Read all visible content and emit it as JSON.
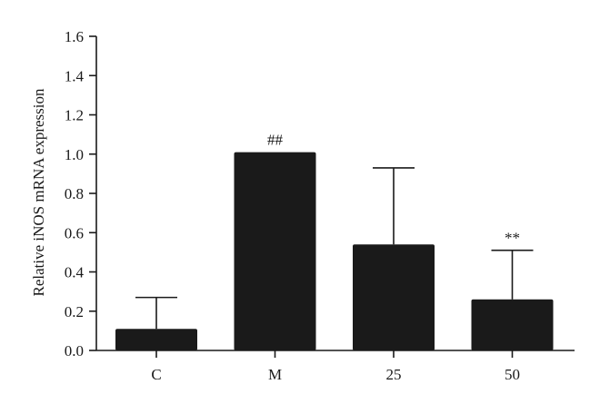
{
  "chart_data": {
    "type": "bar",
    "title": "",
    "xlabel": "",
    "ylabel": "Relative iNOS mRNA expression",
    "ylim": [
      0,
      1.6
    ],
    "yticks": [
      "0.0",
      "0.2",
      "0.4",
      "0.6",
      "0.8",
      "1.0",
      "1.2",
      "1.4",
      "1.6"
    ],
    "categories": [
      "C",
      "M",
      "25",
      "50"
    ],
    "values": [
      0.11,
      1.01,
      0.54,
      0.26
    ],
    "error_upper": [
      0.27,
      1.01,
      0.93,
      0.51
    ],
    "annotations": [
      "",
      "##",
      "",
      "**"
    ],
    "bar_color": "#1a1a1a",
    "grid": false,
    "legend": "none"
  }
}
